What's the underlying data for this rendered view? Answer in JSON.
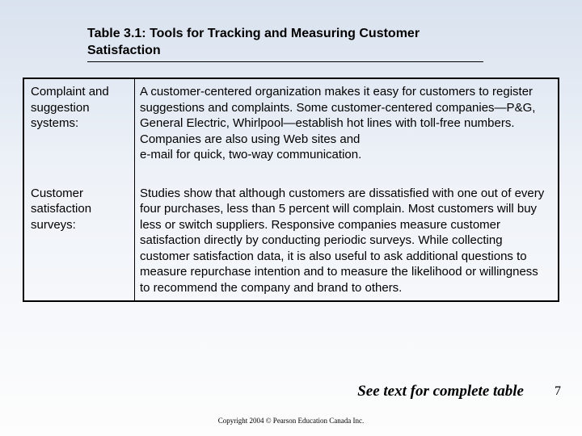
{
  "title": "Table 3.1:  Tools for Tracking and Measuring Customer Satisfaction",
  "rows": [
    {
      "label": "Complaint and suggestion systems:",
      "desc": "A customer-centered organization makes it easy for customers to register suggestions and complaints. Some customer-centered companies—P&G, General Electric, Whirlpool—establish hot lines with toll-free numbers. Companies are also using Web sites and\ne-mail for quick, two-way communication."
    },
    {
      "label": "Customer satisfaction surveys:",
      "desc": "Studies show that although customers are dissatisfied with one out of every four purchases, less than 5 percent will complain. Most customers will buy less or switch suppliers. Responsive companies measure customer satisfaction directly by conducting periodic surveys. While collecting customer satisfaction data, it is also useful to ask additional questions to measure repurchase intention and to measure the likelihood or willingness to recommend the company and brand to others."
    }
  ],
  "see_text": "See text for complete table",
  "page_num": "7",
  "copyright": "Copyright 2004 © Pearson Education Canada Inc."
}
